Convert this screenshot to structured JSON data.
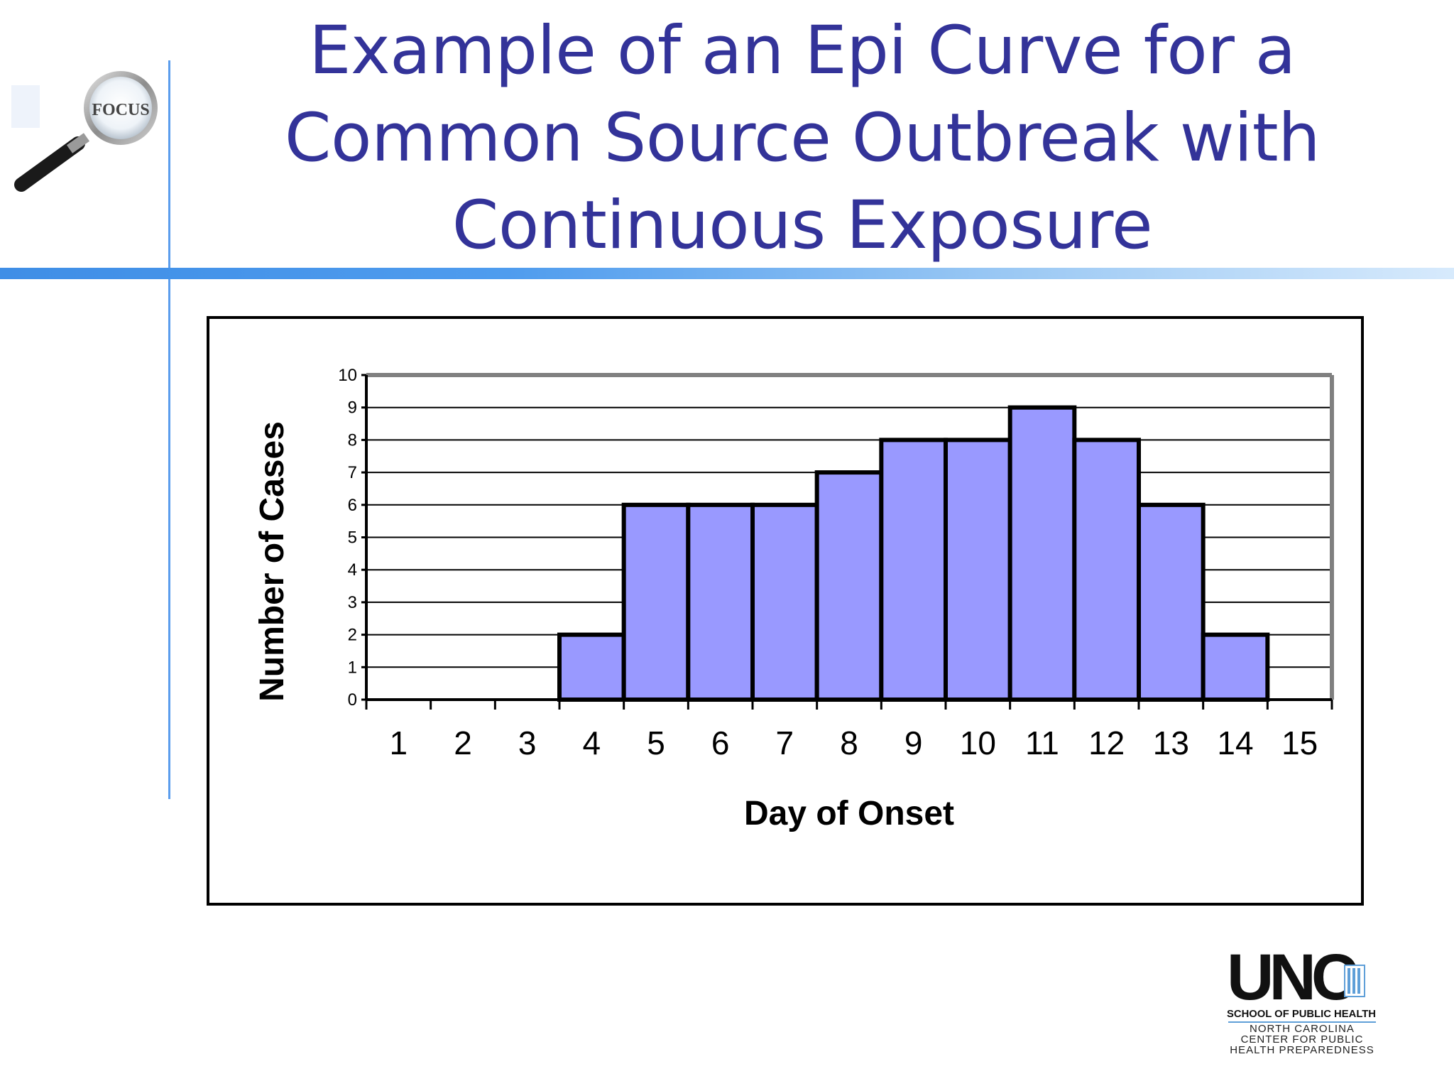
{
  "slide": {
    "title_lines": [
      "Example of an Epi Curve for a",
      "Common Source Outbreak with",
      "Continuous Exposure"
    ]
  },
  "logos": {
    "focus": {
      "text": "FOCUS",
      "icon": "magnifier-icon"
    },
    "unc": {
      "wordmark": "UNC",
      "school": "SCHOOL OF PUBLIC HEALTH",
      "center_lines": [
        "NORTH CAROLINA",
        "CENTER FOR PUBLIC",
        "HEALTH PREPAREDNESS"
      ]
    }
  },
  "colors": {
    "title": "#333399",
    "bar_fill": "#9999ff",
    "rule": "#4f9cee"
  },
  "chart_data": {
    "type": "bar",
    "title": "",
    "xlabel": "Day of Onset",
    "ylabel": "Number of Cases",
    "categories": [
      "1",
      "2",
      "3",
      "4",
      "5",
      "6",
      "7",
      "8",
      "9",
      "10",
      "11",
      "12",
      "13",
      "14",
      "15"
    ],
    "values": [
      0,
      0,
      0,
      2,
      6,
      6,
      6,
      7,
      8,
      8,
      9,
      8,
      6,
      2,
      0
    ],
    "ylim": [
      0,
      10
    ],
    "yticks": [
      "0",
      "1",
      "2",
      "3",
      "4",
      "5",
      "6",
      "7",
      "8",
      "9",
      "10"
    ],
    "grid": true,
    "legend": "none"
  }
}
